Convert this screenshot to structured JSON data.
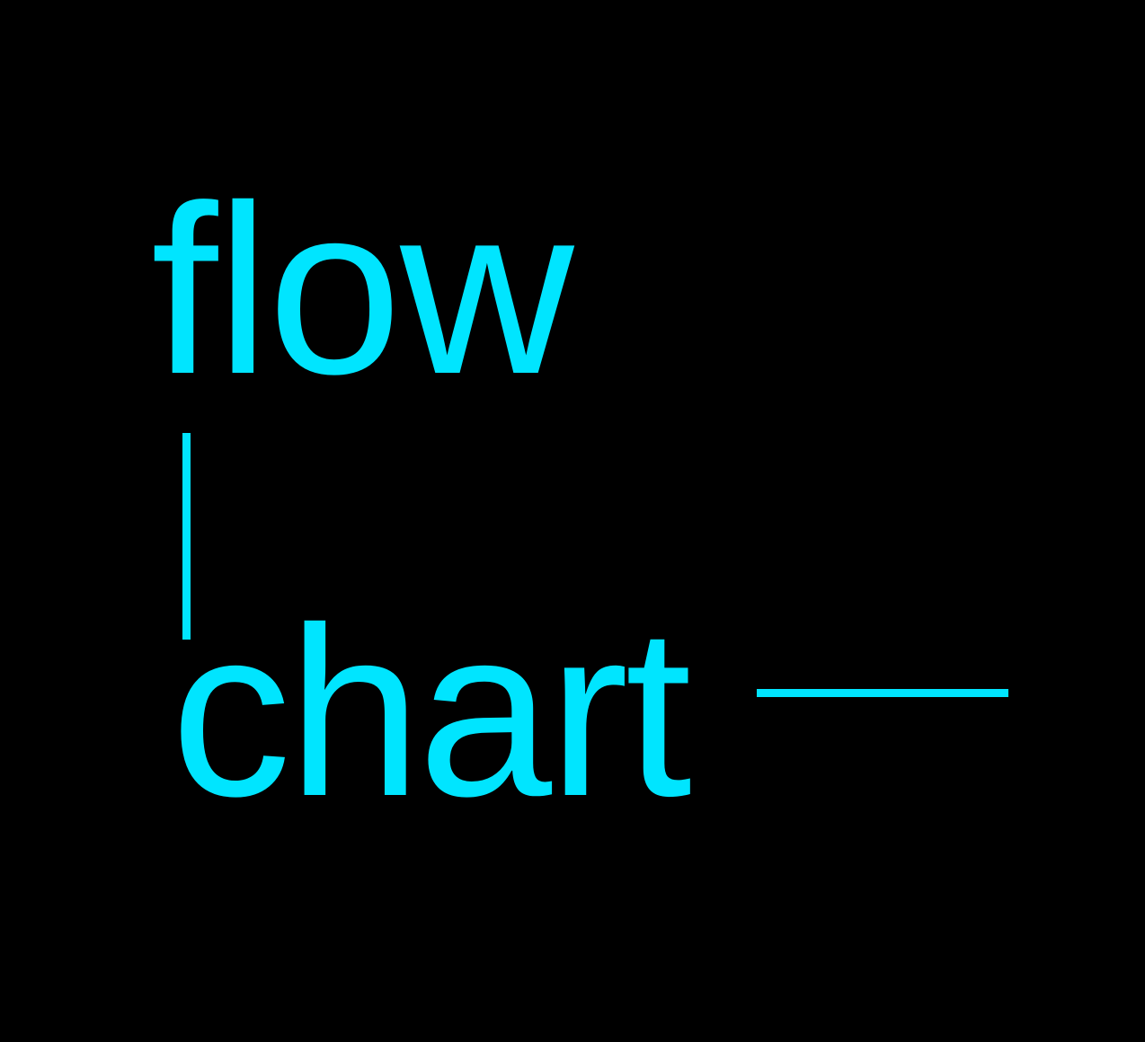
{
  "logo": {
    "word_top": "flow",
    "word_bottom": "chart"
  },
  "colors": {
    "background": "#000000",
    "accent": "#00e5ff"
  }
}
